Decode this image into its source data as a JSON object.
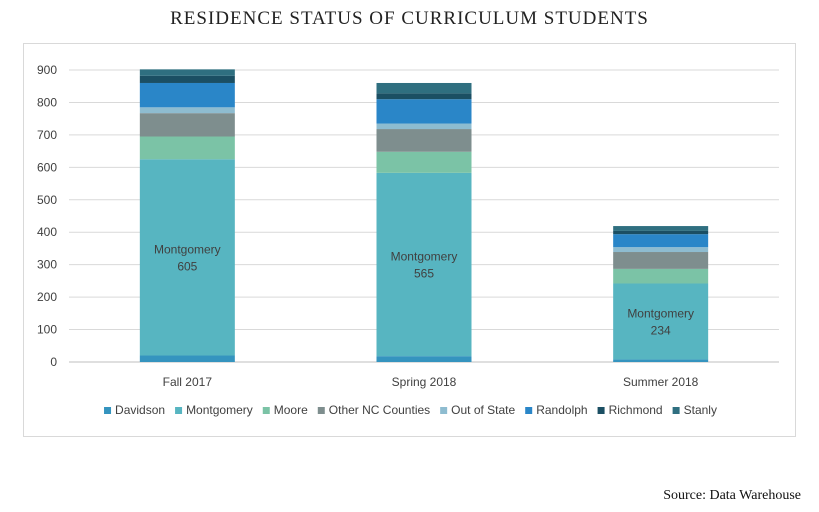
{
  "title": "RESIDENCE STATUS OF CURRICULUM STUDENTS",
  "source": "Source: Data Warehouse",
  "colors": {
    "Davidson": "#3594BF",
    "Montgomery": "#57B5C1",
    "Moore": "#7BC3A6",
    "Other NC Counties": "#7E8E8E",
    "Out of State": "#8EBCD0",
    "Randolph": "#2A86C8",
    "Richmond": "#1B4F63",
    "Stanly": "#2F6F80"
  },
  "chart_data": {
    "type": "bar",
    "stacked": true,
    "title": "RESIDENCE STATUS OF CURRICULUM STUDENTS",
    "categories": [
      "Fall 2017",
      "Spring 2018",
      "Summer 2018"
    ],
    "yticks": [
      "0",
      "100",
      "200",
      "300",
      "400",
      "500",
      "600",
      "700",
      "800",
      "900"
    ],
    "ylim": [
      0,
      900
    ],
    "grid": true,
    "legend": "bottom",
    "series": [
      {
        "name": "Davidson",
        "values": [
          20,
          18,
          8
        ]
      },
      {
        "name": "Montgomery",
        "values": [
          605,
          565,
          234
        ]
      },
      {
        "name": "Moore",
        "values": [
          70,
          65,
          45
        ]
      },
      {
        "name": "Other NC Counties",
        "values": [
          72,
          70,
          52
        ]
      },
      {
        "name": "Out of State",
        "values": [
          18,
          17,
          15
        ]
      },
      {
        "name": "Randolph",
        "values": [
          75,
          75,
          40
        ]
      },
      {
        "name": "Richmond",
        "values": [
          22,
          18,
          10
        ]
      },
      {
        "name": "Stanly",
        "values": [
          20,
          32,
          15
        ]
      }
    ],
    "data_labels": [
      {
        "category": "Fall 2017",
        "series": "Montgomery",
        "name": "Montgomery",
        "value": "605"
      },
      {
        "category": "Spring 2018",
        "series": "Montgomery",
        "name": "Montgomery",
        "value": "565"
      },
      {
        "category": "Summer 2018",
        "series": "Montgomery",
        "name": "Montgomery",
        "value": "234"
      }
    ]
  }
}
